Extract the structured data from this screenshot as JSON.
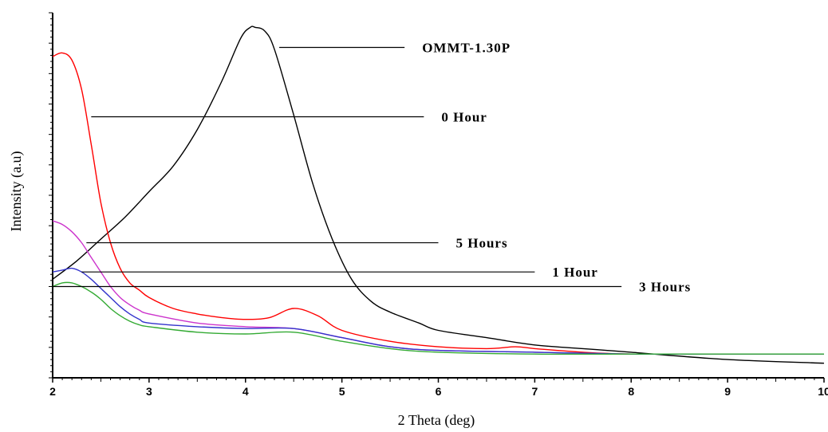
{
  "chart_data": {
    "type": "line",
    "title": "",
    "xlabel": "2 Theta (deg)",
    "ylabel": "Intensity (a.u)",
    "xlim": [
      2,
      10
    ],
    "ylim": [
      0,
      100
    ],
    "x_ticks": [
      "2",
      "3",
      "4",
      "5",
      "6",
      "7",
      "8",
      "9",
      "10"
    ],
    "y_ticks_labeled": false,
    "grid": false,
    "series": [
      {
        "name": "OMMT-1.30P",
        "color": "#000000",
        "x": [
          2.0,
          2.25,
          2.5,
          2.75,
          3.0,
          3.25,
          3.5,
          3.75,
          3.95,
          4.05,
          4.1,
          4.2,
          4.3,
          4.5,
          4.7,
          4.9,
          5.1,
          5.3,
          5.5,
          5.8,
          6.0,
          6.5,
          7.0,
          7.5,
          8.0,
          9.0,
          10.0
        ],
        "y": [
          27,
          32,
          38,
          44,
          51,
          58,
          68,
          81,
          93,
          96,
          96,
          95,
          90,
          72,
          53,
          38,
          27,
          21,
          18,
          15,
          13,
          11,
          9,
          8,
          7,
          5,
          4
        ]
      },
      {
        "name": "0 Hour",
        "color": "#ff0000",
        "x": [
          2.0,
          2.1,
          2.2,
          2.3,
          2.4,
          2.5,
          2.6,
          2.7,
          2.8,
          2.9,
          3.0,
          3.25,
          3.5,
          3.75,
          4.0,
          4.25,
          4.5,
          4.75,
          5.0,
          5.5,
          6.0,
          6.5,
          6.8,
          7.0,
          7.5,
          8.0,
          9.0,
          10.0
        ],
        "y": [
          88,
          89,
          87,
          79,
          64,
          48,
          37,
          30,
          26,
          24,
          22,
          19,
          17.5,
          16.5,
          16,
          16.5,
          19,
          17,
          13,
          10,
          8.5,
          8,
          8.5,
          8,
          7,
          6.5,
          6.5,
          6.5
        ]
      },
      {
        "name": "5 Hours",
        "color": "#cc33cc",
        "x": [
          2.0,
          2.1,
          2.2,
          2.3,
          2.4,
          2.5,
          2.6,
          2.7,
          2.8,
          2.9,
          3.0,
          3.5,
          4.0,
          4.5,
          5.0,
          5.5,
          6.0,
          7.0,
          8.0,
          9.0,
          10.0
        ],
        "y": [
          43,
          42,
          40,
          37,
          33,
          29,
          25,
          22,
          20,
          18.5,
          17.5,
          15,
          14,
          13.5,
          11,
          8.5,
          7.5,
          7,
          6.5,
          6.5,
          6.5
        ]
      },
      {
        "name": "1 Hour",
        "color": "#3333cc",
        "x": [
          2.0,
          2.1,
          2.2,
          2.3,
          2.4,
          2.5,
          2.6,
          2.7,
          2.8,
          2.9,
          3.0,
          3.5,
          4.0,
          4.5,
          5.0,
          5.5,
          6.0,
          7.0,
          8.0,
          9.0,
          10.0
        ],
        "y": [
          29,
          29.5,
          30,
          29,
          27,
          24.5,
          22,
          19.5,
          17.5,
          16,
          15,
          14,
          13.5,
          13.5,
          11,
          8.5,
          7.5,
          7,
          6.5,
          6.5,
          6.5
        ]
      },
      {
        "name": "3 Hours",
        "color": "#33aa33",
        "x": [
          2.0,
          2.1,
          2.2,
          2.3,
          2.4,
          2.5,
          2.6,
          2.7,
          2.8,
          2.9,
          3.0,
          3.5,
          4.0,
          4.5,
          5.0,
          5.5,
          6.0,
          7.0,
          8.0,
          9.0,
          10.0
        ],
        "y": [
          25,
          26,
          26,
          25,
          23.5,
          21.5,
          19,
          17,
          15.5,
          14.5,
          14,
          12.5,
          12,
          12.5,
          10,
          8,
          7,
          6.5,
          6.5,
          6.5,
          6.5
        ]
      }
    ],
    "annotations": [
      {
        "text": "OMMT-1.30P",
        "series": "OMMT-1.30P",
        "from": [
          4.35,
          90.5
        ],
        "to": [
          5.65,
          90.5
        ]
      },
      {
        "text": "0 Hour",
        "series": "0 Hour",
        "from": [
          2.4,
          71.5
        ],
        "to": [
          5.85,
          71.5
        ]
      },
      {
        "text": "5 Hours",
        "series": "5 Hours",
        "from": [
          2.35,
          37
        ],
        "to": [
          6.0,
          37
        ]
      },
      {
        "text": "1 Hour",
        "series": "1 Hour",
        "from": [
          2.3,
          29
        ],
        "to": [
          7.0,
          29
        ]
      },
      {
        "text": "3 Hours",
        "series": "3 Hours",
        "from": [
          2.0,
          25
        ],
        "to": [
          7.9,
          25
        ]
      }
    ]
  }
}
